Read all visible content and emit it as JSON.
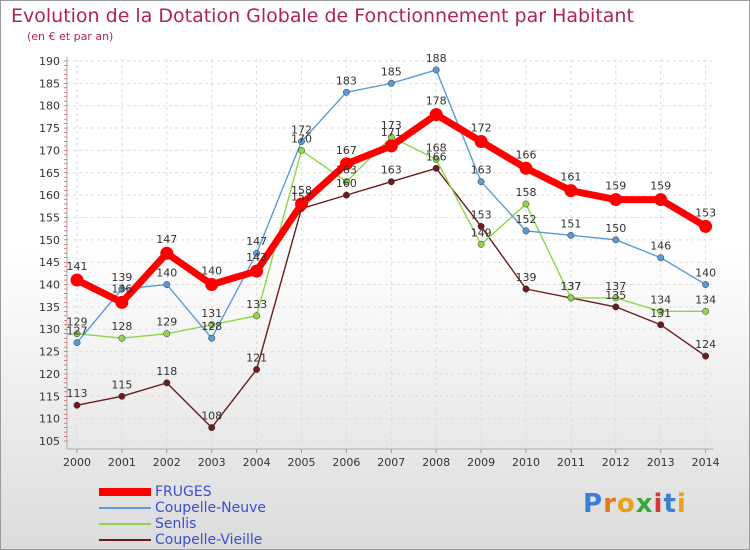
{
  "chart_data": {
    "type": "line",
    "title": "Evolution de la Dotation Globale de Fonctionnement par Habitant",
    "subtitle": "(en € et par an)",
    "xlabel": "",
    "ylabel": "",
    "categories": [
      "2000",
      "2001",
      "2002",
      "2003",
      "2004",
      "2005",
      "2006",
      "2007",
      "2008",
      "2009",
      "2010",
      "2011",
      "2012",
      "2013",
      "2014"
    ],
    "ylim": [
      105,
      190
    ],
    "yticks": [
      105,
      110,
      115,
      120,
      125,
      130,
      135,
      140,
      145,
      150,
      155,
      160,
      165,
      170,
      175,
      180,
      185,
      190
    ],
    "legend_position": "bottom-left",
    "series": [
      {
        "name": "FRUGES",
        "color": "#ff0000",
        "values": [
          141,
          136,
          147,
          140,
          143,
          158,
          167,
          171,
          178,
          172,
          166,
          161,
          159,
          159,
          153
        ]
      },
      {
        "name": "Coupelle-Neuve",
        "color": "#5b9bd5",
        "values": [
          127,
          139,
          140,
          128,
          147,
          172,
          183,
          185,
          188,
          163,
          152,
          151,
          150,
          146,
          140
        ]
      },
      {
        "name": "Senlis",
        "color": "#8ed54a",
        "values": [
          129,
          128,
          129,
          131,
          133,
          170,
          163,
          173,
          168,
          149,
          158,
          137,
          137,
          134,
          134
        ]
      },
      {
        "name": "Coupelle-Vieille",
        "color": "#6b1c1c",
        "values": [
          113,
          115,
          118,
          108,
          121,
          157,
          160,
          163,
          166,
          153,
          139,
          137,
          135,
          131,
          124
        ]
      }
    ]
  },
  "logo": {
    "letters": [
      "P",
      "r",
      "o",
      "x",
      "i",
      "t",
      "i"
    ]
  }
}
